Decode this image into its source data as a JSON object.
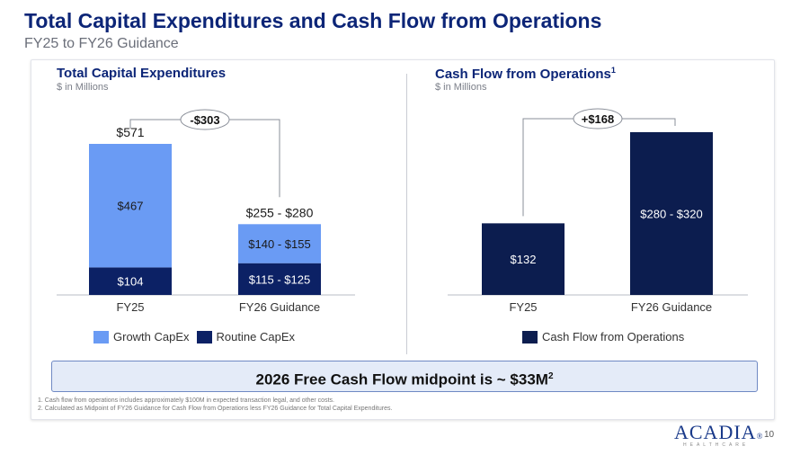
{
  "slide": {
    "title": "Total Capital Expenditures and Cash Flow from Operations",
    "subtitle": "FY25 to FY26 Guidance",
    "banner": "2026 Free Cash Flow midpoint is ~ $33M",
    "banner_sup": "2",
    "footnotes": [
      "1.    Cash flow from operations includes approximately $100M in expected transaction legal, and other costs.",
      "2.    Calculated as Midpoint of FY26 Guidance for Cash Flow from Operations less FY26 Guidance for Total Capital Expenditures."
    ],
    "logo_text": "ACADIA",
    "logo_mark": "®",
    "logo_subtext": "HEALTHCARE",
    "page_number": "10"
  },
  "chart_data": [
    {
      "type": "bar",
      "stacked": true,
      "title": "Total Capital Expenditures",
      "subtitle": "$ in Millions",
      "categories": [
        "FY25",
        "FY26 Guidance"
      ],
      "series": [
        {
          "name": "Routine CapEx",
          "values": [
            104,
            120
          ],
          "labels": [
            "$104",
            "$115 - $125"
          ],
          "color": "#0c2165"
        },
        {
          "name": "Growth CapEx",
          "values": [
            467,
            147.5
          ],
          "labels": [
            "$467",
            "$140 - $155"
          ],
          "color": "#6a9bf4"
        }
      ],
      "totals": [
        "$571",
        "$255 - $280"
      ],
      "change_label": "-$303",
      "ylim": [
        0,
        600
      ]
    },
    {
      "type": "bar",
      "title": "Cash Flow from Operations",
      "title_sup": "1",
      "subtitle": "$ in Millions",
      "categories": [
        "FY25",
        "FY26 Guidance"
      ],
      "series": [
        {
          "name": "Cash Flow from Operations",
          "values": [
            132,
            300
          ],
          "labels": [
            "$132",
            "$280 - $320"
          ],
          "color": "#0c1d4f"
        }
      ],
      "change_label": "+$168",
      "ylim": [
        0,
        330
      ]
    }
  ]
}
